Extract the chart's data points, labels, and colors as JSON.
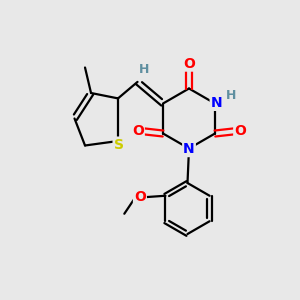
{
  "background_color": "#e8e8e8",
  "bond_color": "#000000",
  "atom_colors": {
    "O": "#ff0000",
    "N": "#0000ff",
    "S": "#cccc00",
    "H_label": "#5f8fa0",
    "C": "#000000"
  },
  "figsize": [
    3.0,
    3.0
  ],
  "dpi": 100
}
